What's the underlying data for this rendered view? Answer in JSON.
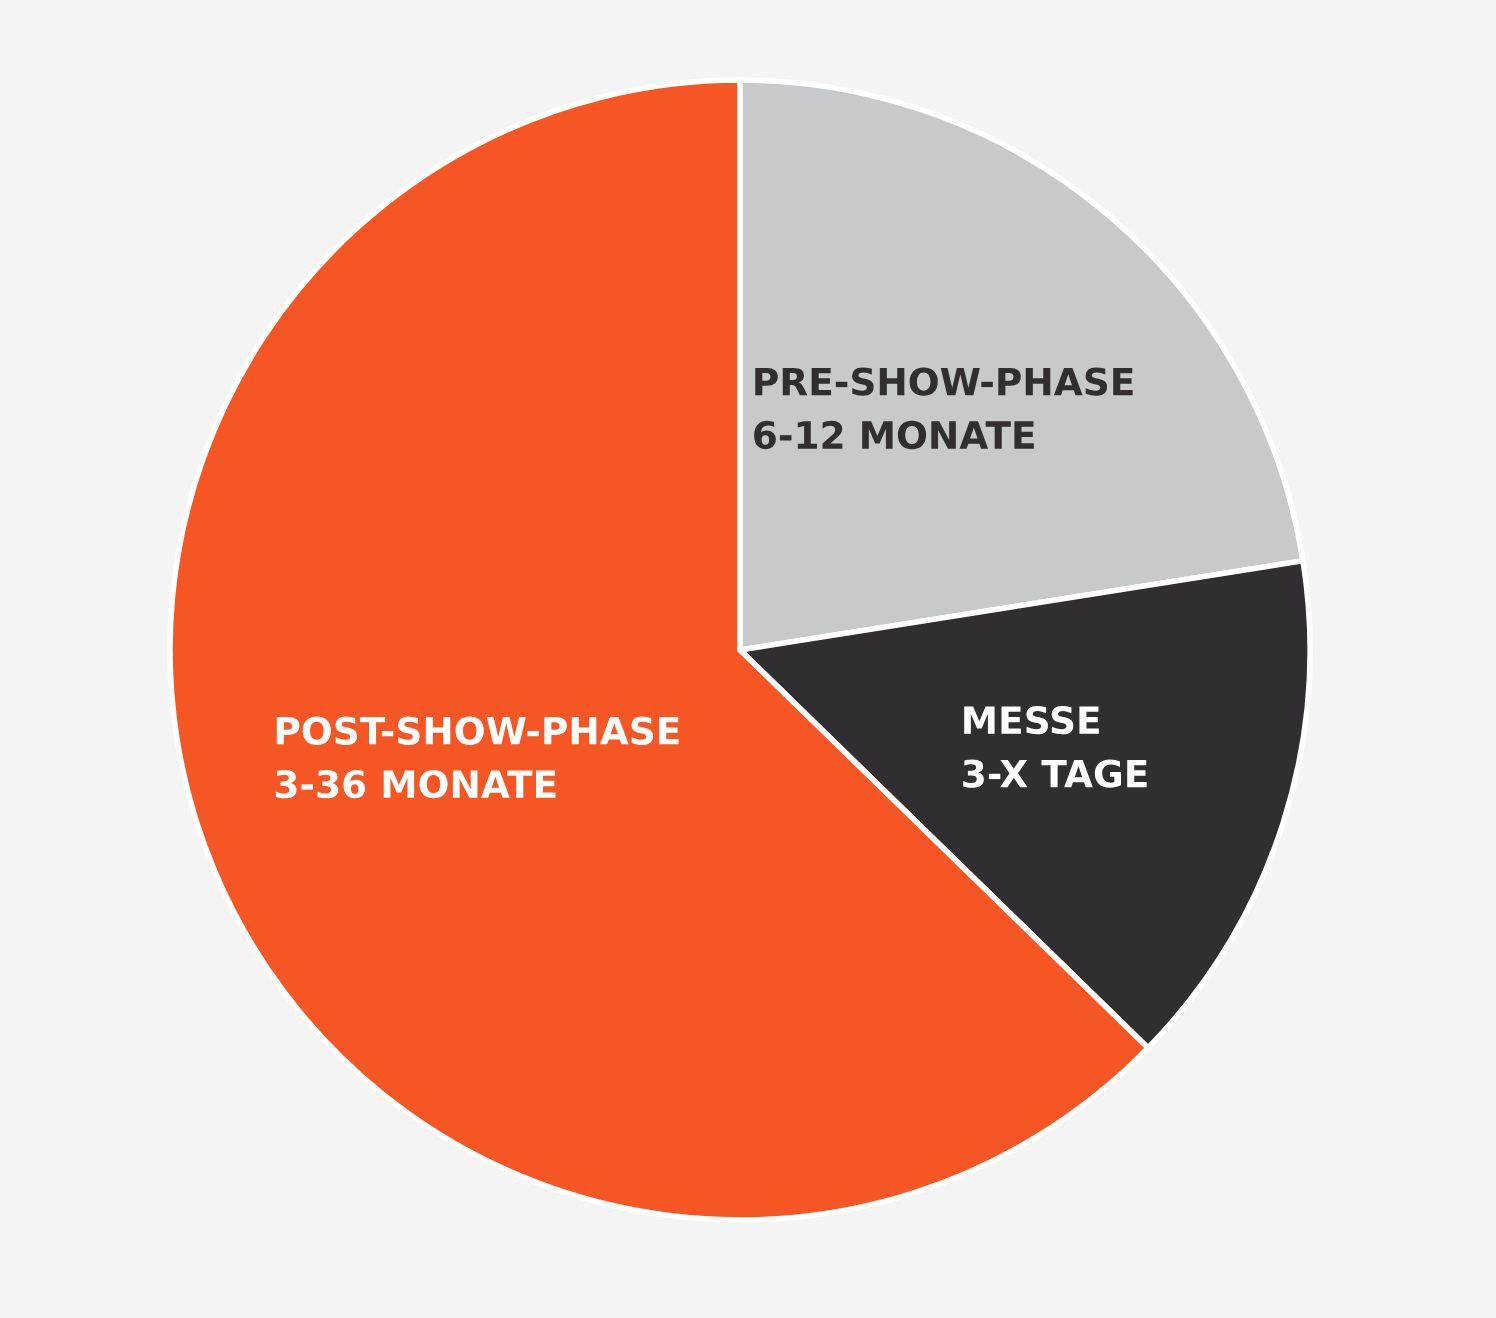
{
  "chart_data": {
    "type": "pie",
    "categories": [
      "PRE-SHOW-PHASE\n6-12 MONATE",
      "MESSE\n3-X TAGE",
      "POST-SHOW-PHASE\n3-36 MONATE"
    ],
    "values": [
      22.5,
      14.8,
      62.7
    ],
    "colors": [
      "#c8c9cb",
      "#302e30",
      "#f55623"
    ]
  }
}
